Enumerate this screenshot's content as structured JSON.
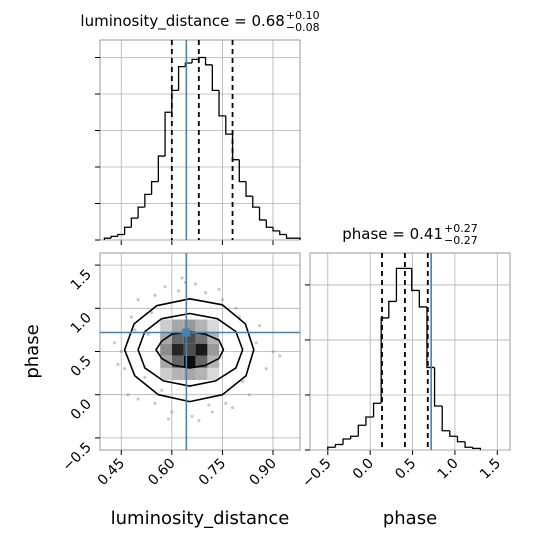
{
  "chart_data": [
    {
      "type": "histogram",
      "title": "luminosity_distance = 0.68",
      "title_upper": "+0.10",
      "title_lower": "−0.08",
      "bins": [
        0.4,
        0.42,
        0.44,
        0.46,
        0.48,
        0.5,
        0.52,
        0.54,
        0.56,
        0.58,
        0.6,
        0.62,
        0.64,
        0.66,
        0.68,
        0.7,
        0.72,
        0.74,
        0.76,
        0.78,
        0.8,
        0.82,
        0.84,
        0.86,
        0.88,
        0.9,
        0.92,
        0.94,
        0.96,
        0.98
      ],
      "counts": [
        0.05,
        0.1,
        0.15,
        0.35,
        0.6,
        0.9,
        1.25,
        1.6,
        2.3,
        3.5,
        4.1,
        4.75,
        4.85,
        4.95,
        5.0,
        4.8,
        4.1,
        3.4,
        2.9,
        2.2,
        1.6,
        1.2,
        0.9,
        0.55,
        0.35,
        0.25,
        0.15,
        0.05,
        0.05
      ],
      "xlim": [
        0.387,
        0.98
      ],
      "xticks": [
        0.45,
        0.6,
        0.75,
        0.9
      ],
      "ylim": [
        0,
        5.48
      ],
      "yticks": [
        0,
        1,
        2,
        3,
        4,
        5
      ],
      "quantiles": [
        0.6,
        0.68,
        0.78
      ],
      "truth": 0.643,
      "color": "#000000",
      "truth_color": "#4682b4",
      "grid": true
    },
    {
      "type": "corner2d",
      "xlabel": "luminosity_distance",
      "ylabel": "phase",
      "xlim": [
        0.387,
        0.98
      ],
      "ylim": [
        -0.64,
        1.64
      ],
      "xticks": [
        0.45,
        {
          "value": 0.6,
          "label": "0.60"
        },
        0.75,
        {
          "value": 0.9,
          "label": "0.90"
        }
      ],
      "yticks": [
        {
          "value": -0.5,
          "label": "−0.5"
        },
        {
          "value": 0,
          "label": "0.0"
        },
        0.5,
        {
          "value": 1,
          "label": "1.0"
        },
        1.5
      ],
      "truth_x": 0.643,
      "truth_y": 0.72,
      "truth_color": "#4682b4",
      "grid": true,
      "points": {
        "x": [
          0.45,
          0.48,
          0.5,
          0.52,
          0.55,
          0.47,
          0.43,
          0.58,
          0.62,
          0.7,
          0.75,
          0.8,
          0.85,
          0.88,
          0.9,
          0.83,
          0.78,
          0.72,
          0.66,
          0.6,
          0.55,
          0.5,
          0.46,
          0.53,
          0.57,
          0.64,
          0.68,
          0.74,
          0.79,
          0.86,
          0.92,
          0.49,
          0.44,
          0.81,
          0.76,
          0.59,
          0.63,
          0.71,
          0.67,
          0.54
        ],
        "y": [
          0.5,
          0.9,
          1.1,
          0.2,
          -0.1,
          0.0,
          0.6,
          1.25,
          1.2,
          1.18,
          1.1,
          0.9,
          0.6,
          0.3,
          0.5,
          0.0,
          -0.15,
          -0.2,
          -0.25,
          -0.2,
          1.15,
          -0.05,
          0.3,
          0.7,
          0.05,
          1.3,
          -0.3,
          1.22,
          1.0,
          0.8,
          0.45,
          0.75,
          0.35,
          0.15,
          -0.1,
          -0.28,
          1.35,
          -0.12,
          1.28,
          0.95
        ]
      },
      "density_x": [
        0.583,
        0.618,
        0.653,
        0.688,
        0.723
      ],
      "density_y": [
        0.8,
        0.66,
        0.52,
        0.38,
        0.24
      ],
      "density_values": [
        [
          0.2,
          0.35,
          0.4,
          0.3,
          0.15
        ],
        [
          0.35,
          0.6,
          0.7,
          0.55,
          0.3
        ],
        [
          0.45,
          0.85,
          0.7,
          0.9,
          0.4
        ],
        [
          0.35,
          0.6,
          0.95,
          0.6,
          0.3
        ],
        [
          0.2,
          0.3,
          0.35,
          0.3,
          0.15
        ]
      ],
      "contours": [
        {
          "x": [
            0.843,
            0.818,
            0.75,
            0.653,
            0.555,
            0.488,
            0.46,
            0.49,
            0.56,
            0.653,
            0.75,
            0.82
          ],
          "y": [
            0.52,
            0.82,
            1.04,
            1.11,
            1.03,
            0.82,
            0.52,
            0.22,
            0.0,
            -0.08,
            0.0,
            0.22
          ]
        },
        {
          "x": [
            0.81,
            0.79,
            0.735,
            0.653,
            0.57,
            0.52,
            0.5,
            0.52,
            0.575,
            0.653,
            0.73,
            0.79
          ],
          "y": [
            0.52,
            0.73,
            0.88,
            0.94,
            0.88,
            0.73,
            0.52,
            0.31,
            0.16,
            0.1,
            0.16,
            0.31
          ]
        },
        {
          "x": [
            0.753,
            0.74,
            0.7,
            0.653,
            0.6,
            0.57,
            0.553,
            0.57,
            0.605,
            0.653,
            0.7,
            0.74
          ],
          "y": [
            0.52,
            0.63,
            0.7,
            0.73,
            0.7,
            0.62,
            0.52,
            0.42,
            0.34,
            0.31,
            0.34,
            0.42
          ]
        }
      ]
    },
    {
      "type": "histogram",
      "title": "phase = 0.41",
      "title_upper": "+0.27",
      "title_lower": "−0.27",
      "xlabel": "phase",
      "bins": [
        -0.5,
        -0.41,
        -0.32,
        -0.23,
        -0.14,
        -0.05,
        0.04,
        0.13,
        0.22,
        0.31,
        0.4,
        0.49,
        0.58,
        0.67,
        0.76,
        0.85,
        0.94,
        1.03,
        1.12,
        1.21,
        1.3
      ],
      "counts": [
        0.05,
        0.1,
        0.2,
        0.25,
        0.45,
        0.6,
        0.85,
        2.4,
        2.7,
        3.3,
        3.3,
        2.9,
        2.6,
        1.5,
        0.8,
        0.35,
        0.25,
        0.15,
        0.05,
        0.03
      ],
      "xlim": [
        -0.71,
        1.65
      ],
      "xticks": [
        {
          "value": -0.5,
          "label": "−0.5"
        },
        {
          "value": 0,
          "label": "0.0"
        },
        0.5,
        {
          "value": 1,
          "label": "1.0"
        },
        1.5
      ],
      "ylim": [
        0,
        3.58
      ],
      "yticks": [
        0,
        1,
        2,
        3
      ],
      "quantiles": [
        0.14,
        0.41,
        0.68
      ],
      "truth": 0.72,
      "color": "#000000",
      "truth_color": "#4682b4",
      "grid": true
    }
  ]
}
